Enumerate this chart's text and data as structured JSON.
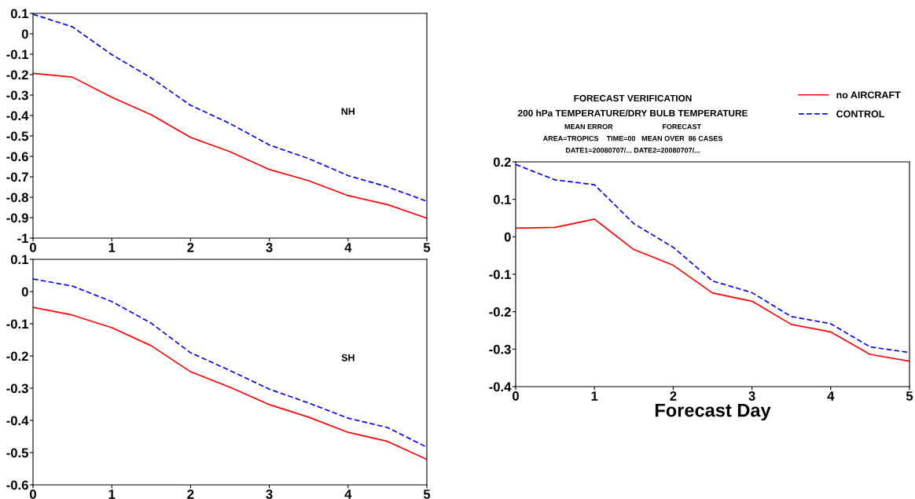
{
  "chart_data": [
    {
      "type": "line",
      "x": [
        0,
        0.5,
        1,
        1.5,
        2,
        2.5,
        3,
        3.5,
        4,
        4.5,
        5
      ],
      "xlim": [
        0,
        5
      ],
      "xticks": [
        0,
        1,
        2,
        3,
        4,
        5
      ],
      "ylim": [
        -1,
        0.1
      ],
      "yticks": [
        {
          "value": -1,
          "label": "-1"
        },
        {
          "value": -0.9,
          "label": "-0.9"
        },
        {
          "value": -0.8,
          "label": "-0.8"
        },
        {
          "value": -0.7,
          "label": "-0.7"
        },
        {
          "value": -0.6,
          "label": "-0.6"
        },
        {
          "value": -0.5,
          "label": "-0.5"
        },
        {
          "value": -0.4,
          "label": "-0.4"
        },
        {
          "value": -0.3,
          "label": "-0.3"
        },
        {
          "value": -0.2,
          "label": "-0.2"
        },
        {
          "value": -0.1,
          "label": "-0.1"
        },
        0,
        0.1
      ],
      "grid": false,
      "annotations": [
        "NH"
      ],
      "series": [
        {
          "color": "#ff0000",
          "line_style": "solid",
          "values": [
            -0.194,
            -0.212,
            -0.311,
            -0.396,
            -0.507,
            -0.577,
            -0.664,
            -0.719,
            -0.792,
            -0.836,
            -0.902
          ]
        },
        {
          "color": "#0000ff",
          "line_style": "dashed",
          "values": [
            0.096,
            0.034,
            -0.102,
            -0.216,
            -0.35,
            -0.439,
            -0.544,
            -0.611,
            -0.694,
            -0.749,
            -0.82
          ]
        }
      ]
    },
    {
      "type": "line",
      "x": [
        0,
        0.5,
        1,
        1.5,
        2,
        2.5,
        3,
        3.5,
        4,
        4.5,
        5
      ],
      "xlim": [
        0,
        5
      ],
      "xticks": [
        0,
        1,
        2,
        3,
        4,
        5
      ],
      "ylim": [
        -0.6,
        0.1
      ],
      "yticks": [
        {
          "value": -0.6,
          "label": "-0.6"
        },
        {
          "value": -0.5,
          "label": "-0.5"
        },
        {
          "value": -0.4,
          "label": "-0.4"
        },
        {
          "value": -0.3,
          "label": "-0.3"
        },
        {
          "value": -0.2,
          "label": "-0.2"
        },
        {
          "value": -0.1,
          "label": "-0.1"
        },
        0,
        0.1
      ],
      "grid": false,
      "annotations": [
        "SH"
      ],
      "series": [
        {
          "color": "#ff0000",
          "line_style": "solid",
          "values": [
            -0.049,
            -0.073,
            -0.112,
            -0.168,
            -0.249,
            -0.297,
            -0.351,
            -0.39,
            -0.437,
            -0.465,
            -0.521
          ]
        },
        {
          "color": "#0000ff",
          "line_style": "dashed",
          "values": [
            0.039,
            0.017,
            -0.031,
            -0.098,
            -0.19,
            -0.245,
            -0.303,
            -0.346,
            -0.393,
            -0.422,
            -0.483
          ]
        }
      ]
    },
    {
      "type": "line",
      "title": "FORECAST VERIFICATION",
      "subtitle": "200 hPa TEMPERATURE/DRY BULB TEMPERATURE",
      "xlabel": "Forecast Day",
      "x": [
        0,
        0.5,
        1,
        1.5,
        2,
        2.5,
        3,
        3.5,
        4,
        4.5,
        5
      ],
      "xlim": [
        0,
        5
      ],
      "xticks": [
        0,
        1,
        2,
        3,
        4,
        5
      ],
      "ylim": [
        -0.4,
        0.2
      ],
      "yticks": [
        {
          "value": -0.4,
          "label": "-0.4"
        },
        {
          "value": -0.3,
          "label": "-0.3"
        },
        {
          "value": -0.2,
          "label": "-0.2"
        },
        {
          "value": -0.1,
          "label": "-0.1"
        },
        0,
        0.1,
        0.2
      ],
      "grid": false,
      "legend": "top right",
      "annotations": [
        "MEAN ERROR                         FORECAST",
        "AREA=TROPICS    TIME=00   MEAN OVER  86 CASES",
        "DATE1=20080707/... DATE2=20080707/..."
      ],
      "series": [
        {
          "name": "no AIRCRAFT",
          "color": "#ff0000",
          "line_style": "solid",
          "values": [
            0.023,
            0.025,
            0.047,
            -0.034,
            -0.076,
            -0.15,
            -0.172,
            -0.234,
            -0.254,
            -0.314,
            -0.332
          ]
        },
        {
          "name": "CONTROL",
          "color": "#0000ff",
          "line_style": "dashed",
          "values": [
            0.193,
            0.152,
            0.139,
            0.035,
            -0.028,
            -0.118,
            -0.149,
            -0.213,
            -0.232,
            -0.294,
            -0.309
          ]
        }
      ]
    }
  ]
}
